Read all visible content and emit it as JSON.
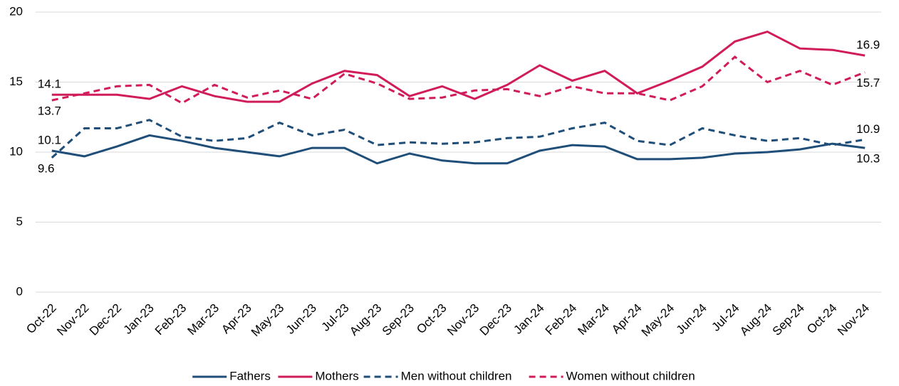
{
  "chart_data": {
    "type": "line",
    "categories": [
      "Oct-22",
      "Nov-22",
      "Dec-22",
      "Jan-23",
      "Feb-23",
      "Mar-23",
      "Apr-23",
      "May-23",
      "Jun-23",
      "Jul-23",
      "Aug-23",
      "Sep-23",
      "Oct-23",
      "Nov-23",
      "Dec-23",
      "Jan-24",
      "Feb-24",
      "Mar-24",
      "Apr-24",
      "May-24",
      "Jun-24",
      "Jul-24",
      "Aug-24",
      "Sep-24",
      "Oct-24",
      "Nov-24"
    ],
    "series": [
      {
        "name": "Fathers",
        "color": "#1f4e79",
        "dashed": false,
        "values": [
          10.1,
          9.7,
          10.4,
          11.2,
          10.8,
          10.3,
          10.0,
          9.7,
          10.3,
          10.3,
          9.2,
          9.9,
          9.4,
          9.2,
          9.2,
          10.1,
          10.5,
          10.4,
          9.5,
          9.5,
          9.6,
          9.9,
          10.0,
          10.2,
          10.6,
          10.3
        ]
      },
      {
        "name": "Mothers",
        "color": "#d01c5b",
        "dashed": false,
        "values": [
          14.1,
          14.1,
          14.1,
          13.8,
          14.7,
          14.0,
          13.6,
          13.6,
          14.9,
          15.8,
          15.5,
          14.0,
          14.7,
          13.8,
          14.8,
          16.2,
          15.1,
          15.8,
          14.2,
          15.1,
          16.1,
          17.9,
          18.6,
          17.4,
          17.3,
          16.9
        ]
      },
      {
        "name": "Men without children",
        "color": "#1f4e79",
        "dashed": true,
        "values": [
          9.6,
          11.7,
          11.7,
          12.3,
          11.1,
          10.8,
          11.0,
          12.1,
          11.2,
          11.6,
          10.5,
          10.7,
          10.6,
          10.7,
          11.0,
          11.1,
          11.7,
          12.1,
          10.8,
          10.5,
          11.7,
          11.2,
          10.8,
          11.0,
          10.5,
          10.9
        ]
      },
      {
        "name": "Women without children",
        "color": "#d01c5b",
        "dashed": true,
        "values": [
          13.7,
          14.2,
          14.7,
          14.8,
          13.5,
          14.8,
          13.9,
          14.4,
          13.8,
          15.6,
          14.9,
          13.8,
          13.9,
          14.4,
          14.5,
          14.0,
          14.7,
          14.2,
          14.2,
          13.7,
          14.7,
          16.8,
          15.0,
          15.8,
          14.8,
          15.7
        ]
      }
    ],
    "ylim": [
      0,
      20
    ],
    "yticks": [
      0,
      5,
      10,
      15,
      20
    ],
    "grid": true,
    "legend": "bottom"
  }
}
